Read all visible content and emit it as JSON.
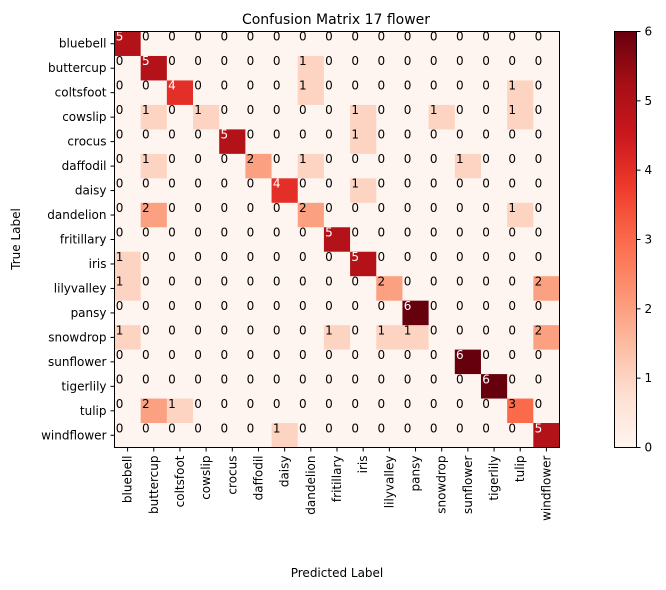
{
  "chart_data": {
    "type": "heatmap",
    "title": "Confusion Matrix 17 flower",
    "xlabel": "Predicted Label",
    "ylabel": "True Label",
    "labels": [
      "bluebell",
      "buttercup",
      "coltsfoot",
      "cowslip",
      "crocus",
      "daffodil",
      "daisy",
      "dandelion",
      "fritillary",
      "iris",
      "lilyvalley",
      "pansy",
      "snowdrop",
      "sunflower",
      "tigerlily",
      "tulip",
      "windflower"
    ],
    "matrix": [
      [
        5,
        0,
        0,
        0,
        0,
        0,
        0,
        0,
        0,
        0,
        0,
        0,
        0,
        0,
        0,
        0,
        0
      ],
      [
        0,
        5,
        0,
        0,
        0,
        0,
        0,
        1,
        0,
        0,
        0,
        0,
        0,
        0,
        0,
        0,
        0
      ],
      [
        0,
        0,
        4,
        0,
        0,
        0,
        0,
        1,
        0,
        0,
        0,
        0,
        0,
        0,
        0,
        1,
        0
      ],
      [
        0,
        1,
        0,
        1,
        0,
        0,
        0,
        0,
        0,
        1,
        0,
        0,
        1,
        0,
        0,
        1,
        0
      ],
      [
        0,
        0,
        0,
        0,
        5,
        0,
        0,
        0,
        0,
        1,
        0,
        0,
        0,
        0,
        0,
        0,
        0
      ],
      [
        0,
        1,
        0,
        0,
        0,
        2,
        0,
        1,
        0,
        0,
        0,
        0,
        0,
        1,
        0,
        0,
        0
      ],
      [
        0,
        0,
        0,
        0,
        0,
        0,
        4,
        0,
        0,
        1,
        0,
        0,
        0,
        0,
        0,
        0,
        0
      ],
      [
        0,
        2,
        0,
        0,
        0,
        0,
        0,
        2,
        0,
        0,
        0,
        0,
        0,
        0,
        0,
        1,
        0
      ],
      [
        0,
        0,
        0,
        0,
        0,
        0,
        0,
        0,
        5,
        0,
        0,
        0,
        0,
        0,
        0,
        0,
        0
      ],
      [
        1,
        0,
        0,
        0,
        0,
        0,
        0,
        0,
        0,
        5,
        0,
        0,
        0,
        0,
        0,
        0,
        0
      ],
      [
        1,
        0,
        0,
        0,
        0,
        0,
        0,
        0,
        0,
        0,
        2,
        0,
        0,
        0,
        0,
        0,
        2
      ],
      [
        0,
        0,
        0,
        0,
        0,
        0,
        0,
        0,
        0,
        0,
        0,
        6,
        0,
        0,
        0,
        0,
        0
      ],
      [
        1,
        0,
        0,
        0,
        0,
        0,
        0,
        0,
        1,
        0,
        1,
        1,
        0,
        0,
        0,
        0,
        2
      ],
      [
        0,
        0,
        0,
        0,
        0,
        0,
        0,
        0,
        0,
        0,
        0,
        0,
        0,
        6,
        0,
        0,
        0
      ],
      [
        0,
        0,
        0,
        0,
        0,
        0,
        0,
        0,
        0,
        0,
        0,
        0,
        0,
        0,
        6,
        0,
        0
      ],
      [
        0,
        2,
        1,
        0,
        0,
        0,
        0,
        0,
        0,
        0,
        0,
        0,
        0,
        0,
        0,
        3,
        0
      ],
      [
        0,
        0,
        0,
        0,
        0,
        0,
        1,
        0,
        0,
        0,
        0,
        0,
        0,
        0,
        0,
        0,
        5
      ]
    ],
    "colorbar": {
      "min": 0,
      "max": 6,
      "ticks": [
        "0",
        "1",
        "2",
        "3",
        "4",
        "5",
        "6"
      ],
      "colormap": "Reds"
    }
  }
}
